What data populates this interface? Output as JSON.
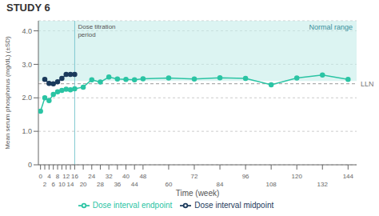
{
  "chart_data": {
    "type": "line",
    "title": "STUDY 6",
    "x_label": "Time (week)",
    "y_label": "Mean serum phosphorus (mg/dL) (±SD)",
    "xlim": [
      -1,
      148
    ],
    "xticks": [
      0,
      2,
      4,
      6,
      8,
      10,
      12,
      14,
      16,
      20,
      24,
      28,
      32,
      36,
      40,
      44,
      48,
      60,
      72,
      84,
      96,
      108,
      120,
      132,
      144
    ],
    "ylim": [
      0,
      4.3
    ],
    "yticks": [
      0,
      {
        "value": 1.0,
        "label": "1.0"
      },
      {
        "value": 2.0,
        "label": "2.0"
      },
      {
        "value": 3.0,
        "label": "3.0"
      },
      {
        "value": 4.0,
        "label": "4.0"
      }
    ],
    "grid": true,
    "legend": "bottom",
    "marker": "circle",
    "series": [
      {
        "name": "Dose interval endpoint",
        "color": "#2bc4a4",
        "x": [
          0,
          2,
          4,
          6,
          8,
          10,
          12,
          14,
          16,
          20,
          24,
          28,
          32,
          36,
          40,
          44,
          48,
          60,
          72,
          84,
          96,
          108,
          120,
          132,
          144
        ],
        "values": [
          1.6,
          2.0,
          1.92,
          2.1,
          2.18,
          2.22,
          2.26,
          2.24,
          2.27,
          2.32,
          2.54,
          2.47,
          2.62,
          2.56,
          2.55,
          2.54,
          2.57,
          2.59,
          2.56,
          2.6,
          2.58,
          2.39,
          2.59,
          2.68,
          2.55
        ]
      },
      {
        "name": "Dose interval midpoint",
        "color": "#1b3a5c",
        "x": [
          2,
          4,
          6,
          8,
          10,
          12,
          14,
          16
        ],
        "values": [
          2.55,
          2.43,
          2.42,
          2.48,
          2.58,
          2.7,
          2.7,
          2.7
        ]
      }
    ],
    "annotations": [
      {
        "text": "Normal range",
        "y_from": 2.5,
        "y_to": 4.3,
        "color": "#c5ede9"
      },
      {
        "text": "LLN",
        "y": 2.42,
        "line_style": "dashed"
      },
      {
        "text": "Dose titration\nperiod",
        "x": 16
      }
    ]
  }
}
